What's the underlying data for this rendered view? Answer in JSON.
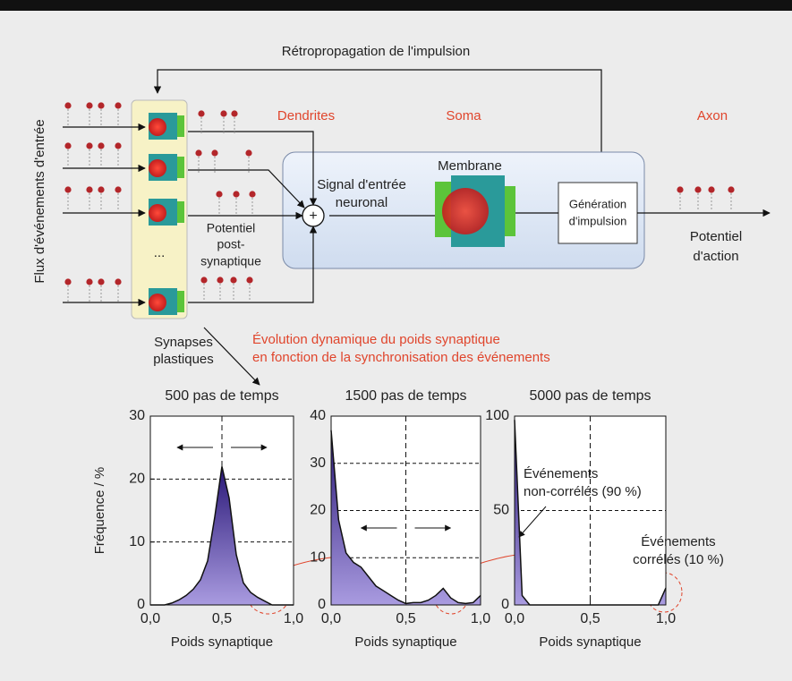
{
  "diagram": {
    "backprop": "Rétropropagation de l'impulsion",
    "input_label": "Flux d'événements d'entrée",
    "dendrites": "Dendrites",
    "soma": "Soma",
    "axon": "Axon",
    "input_signal": [
      "Signal d'entrée",
      "neuronal"
    ],
    "membrane": "Membrane",
    "generation": [
      "Génération",
      "d'impulsion"
    ],
    "psp": [
      "Potentiel",
      "post-",
      "synaptique"
    ],
    "action_potential": [
      "Potentiel",
      "d'action"
    ],
    "synapses": [
      "Synapses",
      "plastiques"
    ],
    "dynamics": [
      "Évolution dynamique du poids synaptique",
      "en fonction de la synchronisation des événements"
    ],
    "ellipsis": "...",
    "sum": "+"
  },
  "chart_data": [
    {
      "type": "area",
      "title": "500 pas de temps",
      "xlabel": "Poids synaptique",
      "ylabel": "Fréquence / %",
      "color": "#4a35a8",
      "x": [
        0,
        0.05,
        0.1,
        0.15,
        0.2,
        0.25,
        0.3,
        0.35,
        0.4,
        0.45,
        0.5,
        0.55,
        0.6,
        0.65,
        0.7,
        0.75,
        0.8,
        0.85,
        0.9,
        0.95,
        1
      ],
      "values": [
        0,
        0,
        0,
        0.3,
        0.8,
        1.5,
        2.5,
        4,
        7,
        14,
        22,
        17,
        8,
        3.5,
        2,
        1.2,
        0.6,
        0,
        0,
        0,
        0
      ],
      "xlim": [
        0,
        1
      ],
      "ylim": [
        0,
        30
      ],
      "xticks": [
        {
          "value": 0,
          "label": "0,0"
        },
        {
          "value": 0.5,
          "label": "0,5"
        },
        {
          "value": 1,
          "label": "1,0"
        }
      ],
      "yticks": [
        0,
        10,
        20,
        30
      ],
      "grid": true
    },
    {
      "type": "area",
      "title": "1500 pas de temps",
      "xlabel": "Poids synaptique",
      "color": "#4a35a8",
      "x": [
        0,
        0.05,
        0.1,
        0.15,
        0.2,
        0.25,
        0.3,
        0.35,
        0.4,
        0.45,
        0.5,
        0.55,
        0.6,
        0.65,
        0.7,
        0.75,
        0.8,
        0.85,
        0.9,
        0.95,
        1
      ],
      "values": [
        37,
        18,
        11,
        9,
        8,
        6,
        4,
        3,
        2,
        1,
        0.3,
        0.5,
        0.5,
        1,
        2,
        3.5,
        1.5,
        0.5,
        0.3,
        0.5,
        2
      ],
      "xlim": [
        0,
        1
      ],
      "ylim": [
        0,
        40
      ],
      "xticks": [
        {
          "value": 0,
          "label": "0,0"
        },
        {
          "value": 0.5,
          "label": "0,5"
        },
        {
          "value": 1,
          "label": "1,0"
        }
      ],
      "yticks": [
        0,
        10,
        20,
        30,
        40
      ],
      "grid": true
    },
    {
      "type": "area",
      "title": "5000 pas de temps",
      "xlabel": "Poids synaptique",
      "color": "#4a35a8",
      "x": [
        0,
        0.05,
        0.1,
        0.15,
        0.2,
        0.25,
        0.3,
        0.35,
        0.4,
        0.45,
        0.5,
        0.55,
        0.6,
        0.65,
        0.7,
        0.75,
        0.8,
        0.85,
        0.9,
        0.95,
        1
      ],
      "values": [
        98,
        5,
        0,
        0,
        0,
        0,
        0,
        0,
        0,
        0,
        0,
        0,
        0,
        0,
        0,
        0,
        0,
        0,
        0,
        0,
        9
      ],
      "xlim": [
        0,
        1
      ],
      "ylim": [
        0,
        100
      ],
      "xticks": [
        {
          "value": 0,
          "label": "0,0"
        },
        {
          "value": 0.5,
          "label": "0,5"
        },
        {
          "value": 1,
          "label": "1,0"
        }
      ],
      "yticks": [
        0,
        50,
        100
      ],
      "grid": true,
      "annotations": [
        {
          "lines": [
            "Événements",
            "non-corrélés (90 %)"
          ],
          "color": "#5b3ba0"
        },
        {
          "lines": [
            "Événements",
            "corrélés (10 %)"
          ],
          "color": "#e0452c"
        }
      ]
    }
  ]
}
